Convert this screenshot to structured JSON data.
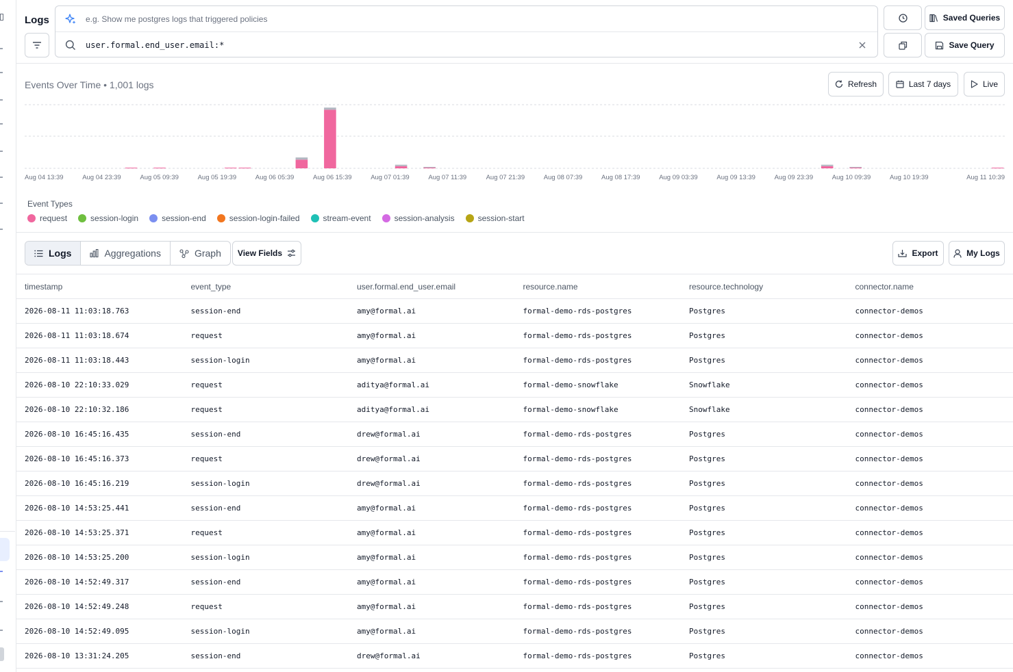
{
  "header": {
    "title": "Logs",
    "ai_placeholder": "e.g. Show me postgres logs that triggered policies",
    "query": "user.formal.end_user.email:*",
    "saved_queries_label": "Saved Queries",
    "save_query_label": "Save Query"
  },
  "chart_section": {
    "heading": "Events Over Time • 1,001 logs",
    "refresh_label": "Refresh",
    "range_label": "Last 7 days",
    "live_label": "Live",
    "event_types_label": "Event Types"
  },
  "legend": [
    {
      "name": "request",
      "color": "#f0679e"
    },
    {
      "name": "session-login",
      "color": "#6fbf3f"
    },
    {
      "name": "session-end",
      "color": "#7b8ff0"
    },
    {
      "name": "session-login-failed",
      "color": "#f2761f"
    },
    {
      "name": "stream-event",
      "color": "#1fc0b5"
    },
    {
      "name": "session-analysis",
      "color": "#d46ae3"
    },
    {
      "name": "session-start",
      "color": "#b7a515"
    }
  ],
  "chart_data": {
    "type": "bar",
    "stacked": true,
    "grid": true,
    "x_tick_labels": [
      "Aug 04 13:39",
      "Aug 04 23:39",
      "Aug 05 09:39",
      "Aug 05 19:39",
      "Aug 06 05:39",
      "Aug 06 15:39",
      "Aug 07 01:39",
      "Aug 07 11:39",
      "Aug 07 21:39",
      "Aug 08 07:39",
      "Aug 08 17:39",
      "Aug 09 03:39",
      "Aug 09 13:39",
      "Aug 09 23:39",
      "Aug 10 09:39",
      "Aug 10 19:39",
      "Aug 11 10:39"
    ],
    "bars": [
      {
        "bin": 7.5,
        "segments": [
          {
            "type": "request",
            "value": 1
          },
          {
            "type": "session-end",
            "value": 0
          }
        ]
      },
      {
        "bin": 9.5,
        "segments": [
          {
            "type": "request",
            "value": 1
          },
          {
            "type": "session-end",
            "value": 0
          }
        ]
      },
      {
        "bin": 14.5,
        "segments": [
          {
            "type": "request",
            "value": 1
          },
          {
            "type": "session-end",
            "value": 0
          }
        ]
      },
      {
        "bin": 15.5,
        "segments": [
          {
            "type": "request",
            "value": 1
          },
          {
            "type": "session-end",
            "value": 0
          }
        ]
      },
      {
        "bin": 19.5,
        "segments": [
          {
            "type": "request",
            "value": 60
          },
          {
            "type": "session-end",
            "value": 15
          }
        ]
      },
      {
        "bin": 21.5,
        "segments": [
          {
            "type": "request",
            "value": 405
          },
          {
            "type": "session-end",
            "value": 15
          }
        ]
      },
      {
        "bin": 26.5,
        "segments": [
          {
            "type": "request",
            "value": 15
          },
          {
            "type": "session-end",
            "value": 10
          }
        ]
      },
      {
        "bin": 28.5,
        "segments": [
          {
            "type": "request",
            "value": 5
          },
          {
            "type": "session-end",
            "value": 5
          }
        ]
      },
      {
        "bin": 56.5,
        "segments": [
          {
            "type": "request",
            "value": 15
          },
          {
            "type": "session-end",
            "value": 10
          }
        ]
      },
      {
        "bin": 58.5,
        "segments": [
          {
            "type": "request",
            "value": 5
          },
          {
            "type": "session-end",
            "value": 5
          }
        ]
      },
      {
        "bin": 68.5,
        "segments": [
          {
            "type": "request",
            "value": 2
          },
          {
            "type": "session-end",
            "value": 0
          }
        ]
      }
    ],
    "bin_count": 69,
    "ylim": [
      0,
      440
    ]
  },
  "tabs": [
    {
      "label": "Logs",
      "active": true
    },
    {
      "label": "Aggregations",
      "active": false
    },
    {
      "label": "Graph",
      "active": false
    }
  ],
  "toolbar": {
    "view_fields_label": "View Fields",
    "export_label": "Export",
    "my_logs_label": "My Logs"
  },
  "table": {
    "columns": [
      "timestamp",
      "event_type",
      "user.formal.end_user.email",
      "resource.name",
      "resource.technology",
      "connector.name"
    ],
    "rows": [
      [
        "2026-08-11 11:03:18.763",
        "session-end",
        "amy@formal.ai",
        "formal-demo-rds-postgres",
        "Postgres",
        "connector-demos"
      ],
      [
        "2026-08-11 11:03:18.674",
        "request",
        "amy@formal.ai",
        "formal-demo-rds-postgres",
        "Postgres",
        "connector-demos"
      ],
      [
        "2026-08-11 11:03:18.443",
        "session-login",
        "amy@formal.ai",
        "formal-demo-rds-postgres",
        "Postgres",
        "connector-demos"
      ],
      [
        "2026-08-10 22:10:33.029",
        "request",
        "aditya@formal.ai",
        "formal-demo-snowflake",
        "Snowflake",
        "connector-demos"
      ],
      [
        "2026-08-10 22:10:32.186",
        "request",
        "aditya@formal.ai",
        "formal-demo-snowflake",
        "Snowflake",
        "connector-demos"
      ],
      [
        "2026-08-10 16:45:16.435",
        "session-end",
        "drew@formal.ai",
        "formal-demo-rds-postgres",
        "Postgres",
        "connector-demos"
      ],
      [
        "2026-08-10 16:45:16.373",
        "request",
        "drew@formal.ai",
        "formal-demo-rds-postgres",
        "Postgres",
        "connector-demos"
      ],
      [
        "2026-08-10 16:45:16.219",
        "session-login",
        "drew@formal.ai",
        "formal-demo-rds-postgres",
        "Postgres",
        "connector-demos"
      ],
      [
        "2026-08-10 14:53:25.441",
        "session-end",
        "amy@formal.ai",
        "formal-demo-rds-postgres",
        "Postgres",
        "connector-demos"
      ],
      [
        "2026-08-10 14:53:25.371",
        "request",
        "amy@formal.ai",
        "formal-demo-rds-postgres",
        "Postgres",
        "connector-demos"
      ],
      [
        "2026-08-10 14:53:25.200",
        "session-login",
        "amy@formal.ai",
        "formal-demo-rds-postgres",
        "Postgres",
        "connector-demos"
      ],
      [
        "2026-08-10 14:52:49.317",
        "session-end",
        "amy@formal.ai",
        "formal-demo-rds-postgres",
        "Postgres",
        "connector-demos"
      ],
      [
        "2026-08-10 14:52:49.248",
        "request",
        "amy@formal.ai",
        "formal-demo-rds-postgres",
        "Postgres",
        "connector-demos"
      ],
      [
        "2026-08-10 14:52:49.095",
        "session-login",
        "amy@formal.ai",
        "formal-demo-rds-postgres",
        "Postgres",
        "connector-demos"
      ],
      [
        "2026-08-10 13:31:24.205",
        "session-end",
        "drew@formal.ai",
        "formal-demo-rds-postgres",
        "Postgres",
        "connector-demos"
      ]
    ]
  }
}
